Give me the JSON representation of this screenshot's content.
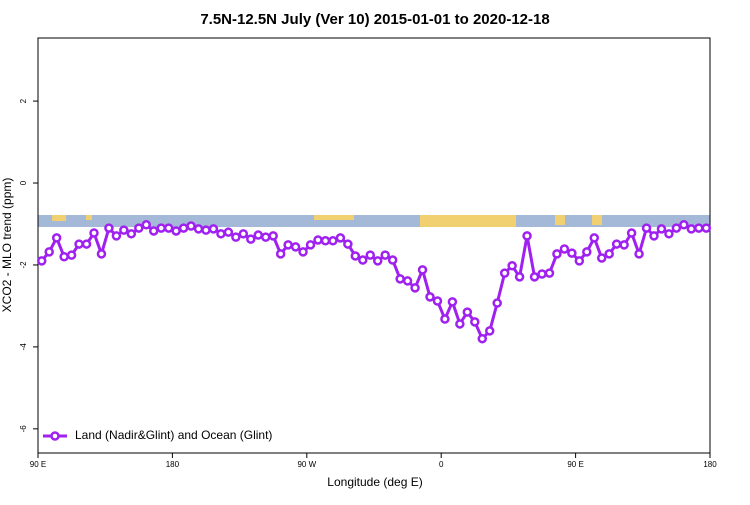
{
  "chart_data": {
    "type": "line",
    "title": "7.5N-12.5N July (Ver 10)   2015-01-01 to 2020-12-18",
    "x_label": "Longitude (deg E)",
    "y_label": "XCO2 - MLO trend (ppm)",
    "xlim": [
      90,
      540
    ],
    "ylim": [
      -6.59,
      3.54
    ],
    "xticks": [
      {
        "value": 90,
        "label": "90 E"
      },
      180,
      {
        "value": 270,
        "label": "90 W"
      },
      {
        "value": 360,
        "label": "0"
      },
      {
        "value": 450,
        "label": "90 E"
      },
      {
        "value": 540,
        "label": "180"
      }
    ],
    "yticks": [
      -6,
      -4,
      -2,
      0,
      2
    ],
    "legend": "bottom-left",
    "x": [
      92.5,
      97.5,
      102.5,
      107.5,
      112.5,
      117.5,
      122.5,
      127.5,
      132.5,
      137.5,
      142.5,
      147.5,
      152.5,
      157.5,
      162.5,
      167.5,
      172.5,
      177.5,
      182.5,
      187.5,
      192.5,
      197.5,
      202.5,
      207.5,
      212.5,
      217.5,
      222.5,
      227.5,
      232.5,
      237.5,
      242.5,
      247.5,
      252.5,
      257.5,
      262.5,
      267.5,
      272.5,
      277.5,
      282.5,
      287.5,
      292.5,
      297.5,
      302.5,
      307.5,
      312.5,
      317.5,
      322.5,
      327.5,
      332.5,
      337.5,
      342.5,
      347.5,
      352.5,
      357.5,
      362.5,
      367.5,
      372.5,
      377.5,
      382.5,
      387.5,
      392.5,
      397.5,
      402.5,
      407.5,
      412.5,
      417.5,
      422.5,
      427.5,
      432.5,
      437.5,
      442.5,
      447.5,
      452.5,
      457.5,
      462.5,
      467.5,
      472.5,
      477.5,
      482.5,
      487.5,
      492.5,
      497.5,
      502.5,
      507.5,
      512.5,
      517.5,
      522.5,
      527.5,
      532.5,
      537.5
    ],
    "series": [
      {
        "name": "Land (Nadir&Glint) and Ocean (Glint)",
        "color": "#a020f0",
        "values": [
          -1.9,
          -1.68,
          -1.34,
          -1.8,
          -1.76,
          -1.49,
          -1.49,
          -1.22,
          -1.73,
          -1.1,
          -1.29,
          -1.15,
          -1.24,
          -1.1,
          -1.02,
          -1.17,
          -1.1,
          -1.1,
          -1.17,
          -1.1,
          -1.05,
          -1.12,
          -1.15,
          -1.12,
          -1.24,
          -1.2,
          -1.32,
          -1.24,
          -1.37,
          -1.27,
          -1.32,
          -1.29,
          -1.73,
          -1.51,
          -1.56,
          -1.68,
          -1.51,
          -1.39,
          -1.41,
          -1.41,
          -1.34,
          -1.49,
          -1.78,
          -1.88,
          -1.76,
          -1.9,
          -1.76,
          -1.88,
          -2.34,
          -2.39,
          -2.56,
          -2.12,
          -2.78,
          -2.88,
          -3.32,
          -2.9,
          -3.44,
          -3.15,
          -3.39,
          -3.8,
          -3.61,
          -2.93,
          -2.2,
          -2.02,
          -2.29,
          -1.29,
          -2.29,
          -2.22,
          -2.2,
          -1.73,
          -1.61,
          -1.71,
          -1.9,
          -1.68,
          -1.34,
          -1.83,
          -1.73,
          -1.49,
          -1.51,
          -1.22,
          -1.73,
          -1.1,
          -1.29,
          -1.12,
          -1.24,
          -1.1,
          -1.02,
          -1.12,
          -1.1,
          -1.1
        ]
      }
    ]
  }
}
